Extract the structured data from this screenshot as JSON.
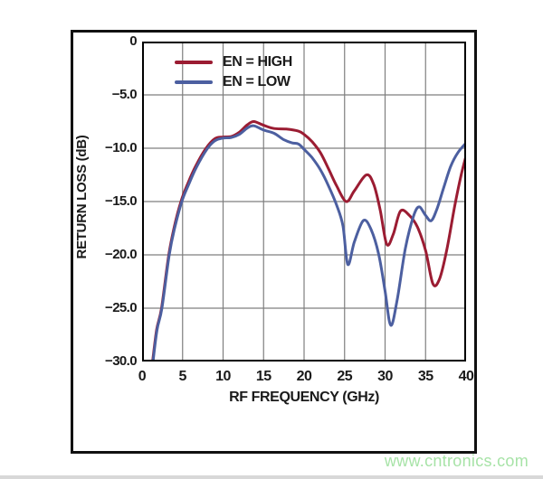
{
  "watermark": {
    "text": "www.cntronics.com",
    "color": "#a7e3a7"
  },
  "chart_data": {
    "type": "line",
    "title": "",
    "xlabel": "RF FREQUENCY (GHz)",
    "ylabel": "RETURN LOSS (dB)",
    "xlim": [
      0,
      40
    ],
    "ylim": [
      -30,
      0
    ],
    "x_ticks": [
      0,
      5,
      10,
      15,
      20,
      25,
      30,
      35,
      40
    ],
    "y_ticks": [
      0,
      -5,
      -10,
      -15,
      -20,
      -25,
      -30
    ],
    "y_tick_labels": [
      "0",
      "−5.0",
      "−10.0",
      "−15.0",
      "−20.0",
      "−25.0",
      "−30.0"
    ],
    "grid": true,
    "legend_position": "top-left-inside",
    "colors": {
      "grid": "#7f7f7f",
      "axis": "#000000",
      "en_high": "#9b1c32",
      "en_low": "#4c5fa0"
    },
    "series": [
      {
        "name": "EN = HIGH",
        "color_key": "en_high",
        "points": [
          [
            1.3,
            -30
          ],
          [
            1.8,
            -27
          ],
          [
            2.4,
            -25
          ],
          [
            3.3,
            -20
          ],
          [
            4.0,
            -17.3
          ],
          [
            4.8,
            -15
          ],
          [
            5.6,
            -13.4
          ],
          [
            6.6,
            -11.7
          ],
          [
            7.9,
            -10
          ],
          [
            9.0,
            -9.1
          ],
          [
            10,
            -8.95
          ],
          [
            11,
            -8.9
          ],
          [
            12,
            -8.5
          ],
          [
            13,
            -7.8
          ],
          [
            13.8,
            -7.5
          ],
          [
            15,
            -7.85
          ],
          [
            16.3,
            -8.15
          ],
          [
            17.8,
            -8.2
          ],
          [
            19.3,
            -8.4
          ],
          [
            20,
            -8.7
          ],
          [
            21,
            -9.4
          ],
          [
            22,
            -10.4
          ],
          [
            23,
            -11.9
          ],
          [
            24,
            -13.5
          ],
          [
            25.2,
            -15.0
          ],
          [
            26.2,
            -14.0
          ],
          [
            27.7,
            -12.5
          ],
          [
            28.6,
            -13.4
          ],
          [
            29.4,
            -15.8
          ],
          [
            30.2,
            -19.0
          ],
          [
            31.0,
            -18.1
          ],
          [
            31.9,
            -15.9
          ],
          [
            33.0,
            -16.3
          ],
          [
            34.0,
            -17.4
          ],
          [
            35.0,
            -19.6
          ],
          [
            35.9,
            -22.7
          ],
          [
            36.7,
            -22.3
          ],
          [
            37.6,
            -19.6
          ],
          [
            38.6,
            -15.4
          ],
          [
            39.4,
            -12.5
          ],
          [
            40,
            -10.7
          ]
        ]
      },
      {
        "name": "EN = LOW",
        "color_key": "en_low",
        "points": [
          [
            1.35,
            -30
          ],
          [
            1.85,
            -27
          ],
          [
            2.45,
            -25
          ],
          [
            3.35,
            -20
          ],
          [
            4.05,
            -17.4
          ],
          [
            4.9,
            -15
          ],
          [
            5.7,
            -13.5
          ],
          [
            6.7,
            -11.8
          ],
          [
            8.0,
            -10.1
          ],
          [
            9.0,
            -9.3
          ],
          [
            10,
            -9.05
          ],
          [
            11,
            -9.0
          ],
          [
            12,
            -8.7
          ],
          [
            13,
            -8.1
          ],
          [
            13.8,
            -7.9
          ],
          [
            15,
            -8.3
          ],
          [
            16.3,
            -8.6
          ],
          [
            17.5,
            -9.2
          ],
          [
            18.5,
            -9.5
          ],
          [
            19.3,
            -9.6
          ],
          [
            20,
            -10.1
          ],
          [
            21,
            -10.9
          ],
          [
            22,
            -12.0
          ],
          [
            23,
            -13.5
          ],
          [
            24,
            -15.3
          ],
          [
            24.8,
            -17.3
          ],
          [
            25.4,
            -20.9
          ],
          [
            26.2,
            -18.8
          ],
          [
            27.3,
            -16.8
          ],
          [
            28.2,
            -17.5
          ],
          [
            29.2,
            -19.9
          ],
          [
            30.0,
            -23.4
          ],
          [
            30.7,
            -26.6
          ],
          [
            31.5,
            -24.2
          ],
          [
            32.5,
            -19.4
          ],
          [
            33.5,
            -16.4
          ],
          [
            34.2,
            -15.5
          ],
          [
            35.0,
            -16.3
          ],
          [
            35.7,
            -16.8
          ],
          [
            36.4,
            -15.7
          ],
          [
            37.2,
            -13.8
          ],
          [
            38.1,
            -11.7
          ],
          [
            39.0,
            -10.4
          ],
          [
            40,
            -9.5
          ]
        ]
      }
    ]
  }
}
